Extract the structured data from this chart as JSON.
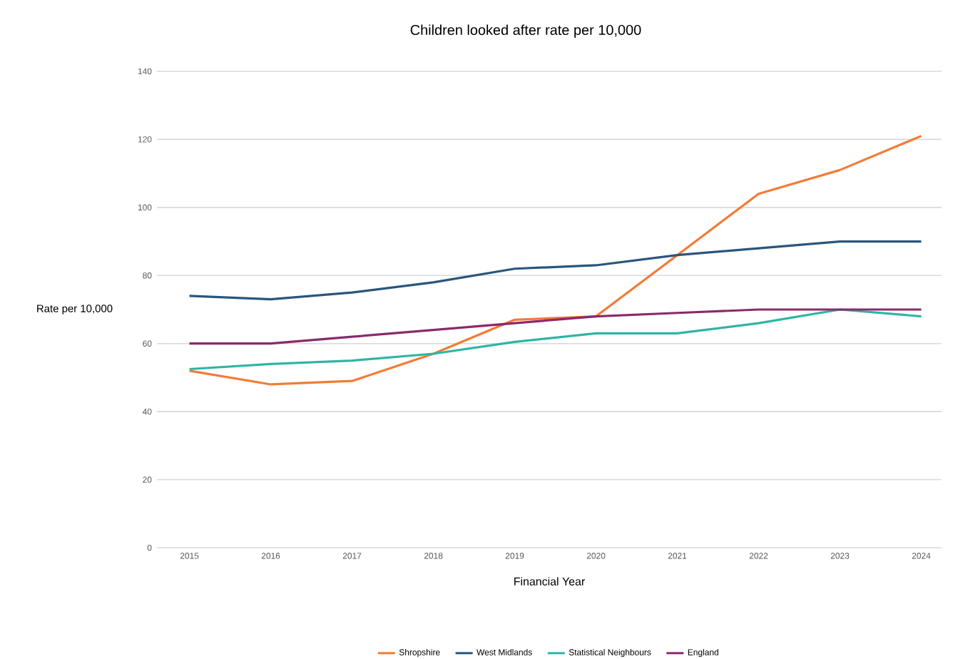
{
  "chart_data": {
    "type": "line",
    "title": "Children looked after rate per 10,000",
    "xlabel": "Financial Year",
    "ylabel": "Rate per 10,000",
    "categories": [
      "2015",
      "2016",
      "2017",
      "2018",
      "2019",
      "2020",
      "2021",
      "2022",
      "2023",
      "2024"
    ],
    "series": [
      {
        "name": "Shropshire",
        "color": "#f47b35",
        "values": [
          52,
          48,
          49,
          57,
          67,
          68,
          86,
          104,
          111,
          121
        ]
      },
      {
        "name": "West Midlands",
        "color": "#2a557d",
        "values": [
          74,
          73,
          75,
          78,
          82,
          83,
          86,
          88,
          90,
          90
        ]
      },
      {
        "name": "Statistical Neighbours",
        "color": "#2fb5a4",
        "values": [
          52.5,
          54,
          55,
          57,
          60.5,
          63,
          63,
          66,
          70,
          68
        ]
      },
      {
        "name": "England",
        "color": "#8a2a6a",
        "values": [
          60,
          60,
          62,
          64,
          66,
          68,
          69,
          70,
          70,
          70
        ]
      }
    ],
    "ylim": [
      0,
      140
    ],
    "yticks": [
      0,
      20,
      40,
      60,
      80,
      100,
      120,
      140
    ],
    "grid": "y",
    "legend": "bottom",
    "marker": "none",
    "line_style": "solid"
  }
}
